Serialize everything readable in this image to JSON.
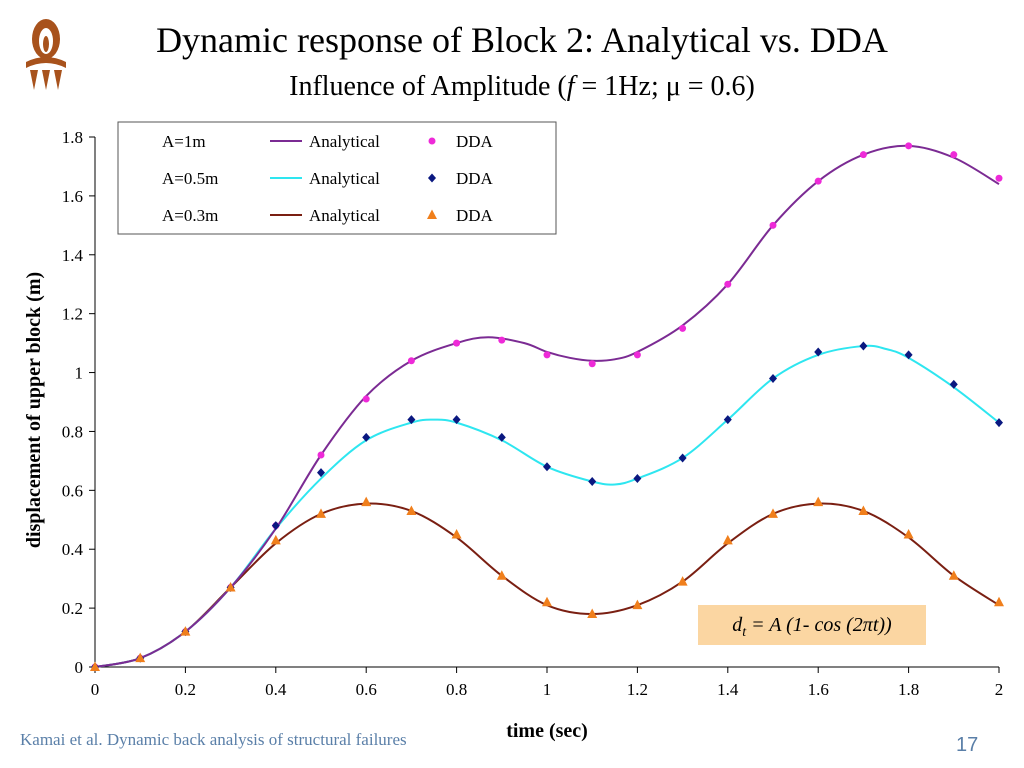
{
  "slide": {
    "title": "Dynamic response of Block 2: Analytical vs. DDA",
    "subtitle_pre": "Influence of Amplitude (",
    "subtitle_f": "f",
    "subtitle_post": " = 1Hz; μ = 0.6)",
    "footer": "Kamai et al. Dynamic back analysis of structural failures",
    "page_number": "17",
    "formula": {
      "d": "d",
      "sub": "t",
      "rest1": " = A (1- cos (2",
      "pi": "π",
      "rest2": "t))"
    }
  },
  "chart_data": {
    "type": "line",
    "xlabel": "time (sec)",
    "ylabel": "displacement of upper block (m)",
    "xlim": [
      0,
      2
    ],
    "ylim": [
      0,
      1.8
    ],
    "xticks": [
      "0",
      "0.2",
      "0.4",
      "0.6",
      "0.8",
      "1",
      "1.2",
      "1.4",
      "1.6",
      "1.8",
      "2"
    ],
    "yticks": [
      "0",
      "0.2",
      "0.4",
      "0.6",
      "0.8",
      "1",
      "1.2",
      "1.4",
      "1.6",
      "1.8"
    ],
    "legend_position": "top-left",
    "series": [
      {
        "amplitude_label": "A=1m",
        "analytical_name": "Analytical",
        "dda_name": "DDA",
        "analytical_color": "#7b2b93",
        "dda_color": "#ee2ad8",
        "marker": "circle",
        "analytical": {
          "x": [
            0,
            0.1,
            0.2,
            0.3,
            0.4,
            0.5,
            0.6,
            0.7,
            0.8,
            0.87,
            0.95,
            1.0,
            1.05,
            1.1,
            1.15,
            1.2,
            1.3,
            1.4,
            1.5,
            1.6,
            1.7,
            1.8,
            1.9,
            2.0
          ],
          "y": [
            0,
            0.03,
            0.12,
            0.27,
            0.47,
            0.72,
            0.92,
            1.04,
            1.1,
            1.12,
            1.1,
            1.07,
            1.05,
            1.04,
            1.045,
            1.07,
            1.16,
            1.3,
            1.5,
            1.65,
            1.74,
            1.77,
            1.73,
            1.64
          ]
        },
        "dda": {
          "x": [
            0,
            0.1,
            0.2,
            0.3,
            0.4,
            0.5,
            0.6,
            0.7,
            0.8,
            0.9,
            1.0,
            1.1,
            1.2,
            1.3,
            1.4,
            1.5,
            1.6,
            1.7,
            1.8,
            1.9,
            2.0
          ],
          "y": [
            0,
            0.03,
            0.12,
            0.27,
            0.48,
            0.72,
            0.91,
            1.04,
            1.1,
            1.11,
            1.06,
            1.03,
            1.06,
            1.15,
            1.3,
            1.5,
            1.65,
            1.74,
            1.77,
            1.74,
            1.66
          ]
        }
      },
      {
        "amplitude_label": "A=0.5m",
        "analytical_name": "Analytical",
        "dda_name": "DDA",
        "analytical_color": "#2ee6f0",
        "dda_color": "#0a1880",
        "marker": "diamond",
        "analytical": {
          "x": [
            0,
            0.1,
            0.2,
            0.3,
            0.4,
            0.5,
            0.6,
            0.7,
            0.75,
            0.8,
            0.9,
            1.0,
            1.1,
            1.15,
            1.2,
            1.3,
            1.4,
            1.5,
            1.6,
            1.7,
            1.75,
            1.8,
            1.9,
            2.0
          ],
          "y": [
            0,
            0.03,
            0.12,
            0.27,
            0.47,
            0.64,
            0.77,
            0.83,
            0.84,
            0.83,
            0.77,
            0.68,
            0.63,
            0.62,
            0.64,
            0.71,
            0.84,
            0.98,
            1.06,
            1.09,
            1.08,
            1.05,
            0.95,
            0.83
          ]
        },
        "dda": {
          "x": [
            0,
            0.1,
            0.2,
            0.3,
            0.4,
            0.5,
            0.6,
            0.7,
            0.8,
            0.9,
            1.0,
            1.1,
            1.2,
            1.3,
            1.4,
            1.5,
            1.6,
            1.7,
            1.8,
            1.9,
            2.0
          ],
          "y": [
            0,
            0.03,
            0.12,
            0.27,
            0.48,
            0.66,
            0.78,
            0.84,
            0.84,
            0.78,
            0.68,
            0.63,
            0.64,
            0.71,
            0.84,
            0.98,
            1.07,
            1.09,
            1.06,
            0.96,
            0.83
          ]
        }
      },
      {
        "amplitude_label": "A=0.3m",
        "analytical_name": "Analytical",
        "dda_name": "DDA",
        "analytical_color": "#7a1f12",
        "dda_color": "#f07f1c",
        "marker": "triangle",
        "analytical": {
          "x": [
            0,
            0.1,
            0.2,
            0.3,
            0.4,
            0.5,
            0.6,
            0.7,
            0.8,
            0.9,
            1.0,
            1.1,
            1.2,
            1.3,
            1.4,
            1.5,
            1.6,
            1.7,
            1.8,
            1.9,
            2.0
          ],
          "y": [
            0,
            0.03,
            0.12,
            0.27,
            0.42,
            0.52,
            0.555,
            0.53,
            0.44,
            0.31,
            0.21,
            0.18,
            0.21,
            0.29,
            0.42,
            0.52,
            0.555,
            0.53,
            0.44,
            0.31,
            0.21
          ]
        },
        "dda": {
          "x": [
            0,
            0.1,
            0.2,
            0.3,
            0.4,
            0.5,
            0.6,
            0.7,
            0.8,
            0.9,
            1.0,
            1.1,
            1.2,
            1.3,
            1.4,
            1.5,
            1.6,
            1.7,
            1.8,
            1.9,
            2.0
          ],
          "y": [
            0,
            0.03,
            0.12,
            0.27,
            0.43,
            0.52,
            0.56,
            0.53,
            0.45,
            0.31,
            0.22,
            0.18,
            0.21,
            0.29,
            0.43,
            0.52,
            0.56,
            0.53,
            0.45,
            0.31,
            0.22
          ]
        }
      }
    ]
  }
}
